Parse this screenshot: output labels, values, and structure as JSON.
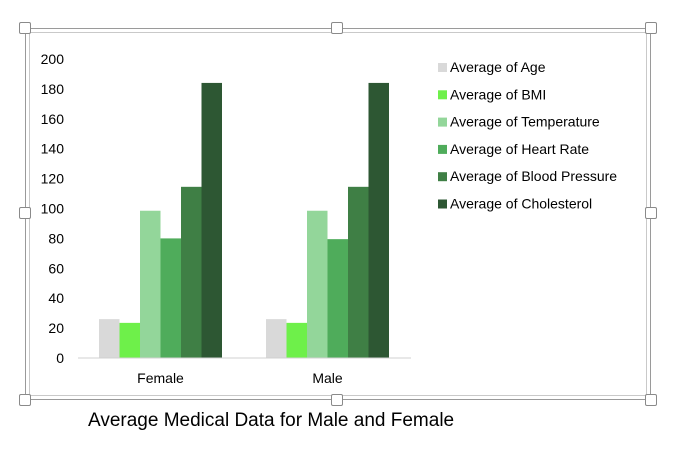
{
  "caption": "Average Medical Data for Male and Female",
  "chart_data": {
    "type": "bar",
    "title": "",
    "xlabel": "",
    "ylabel": "",
    "ylim": [
      0,
      200
    ],
    "yticks": [
      0,
      20,
      40,
      60,
      80,
      100,
      120,
      140,
      160,
      180,
      200
    ],
    "grid": false,
    "legend_position": "right",
    "categories": [
      "Female",
      "Male"
    ],
    "series": [
      {
        "name": "Average of Age",
        "color": "#d9d9d9",
        "values": [
          26,
          26
        ]
      },
      {
        "name": "Average of BMI",
        "color": "#6ef04a",
        "values": [
          23.5,
          23.5
        ]
      },
      {
        "name": "Average of Temperature",
        "color": "#93d69a",
        "values": [
          98.5,
          98.5
        ]
      },
      {
        "name": "Average of Heart Rate",
        "color": "#4fac5b",
        "values": [
          80,
          79.5
        ]
      },
      {
        "name": "Average of Blood Pressure",
        "color": "#3f7f45",
        "values": [
          114.5,
          114.5
        ]
      },
      {
        "name": "Average of Cholesterol",
        "color": "#2d5733",
        "values": [
          184,
          184
        ]
      }
    ]
  }
}
